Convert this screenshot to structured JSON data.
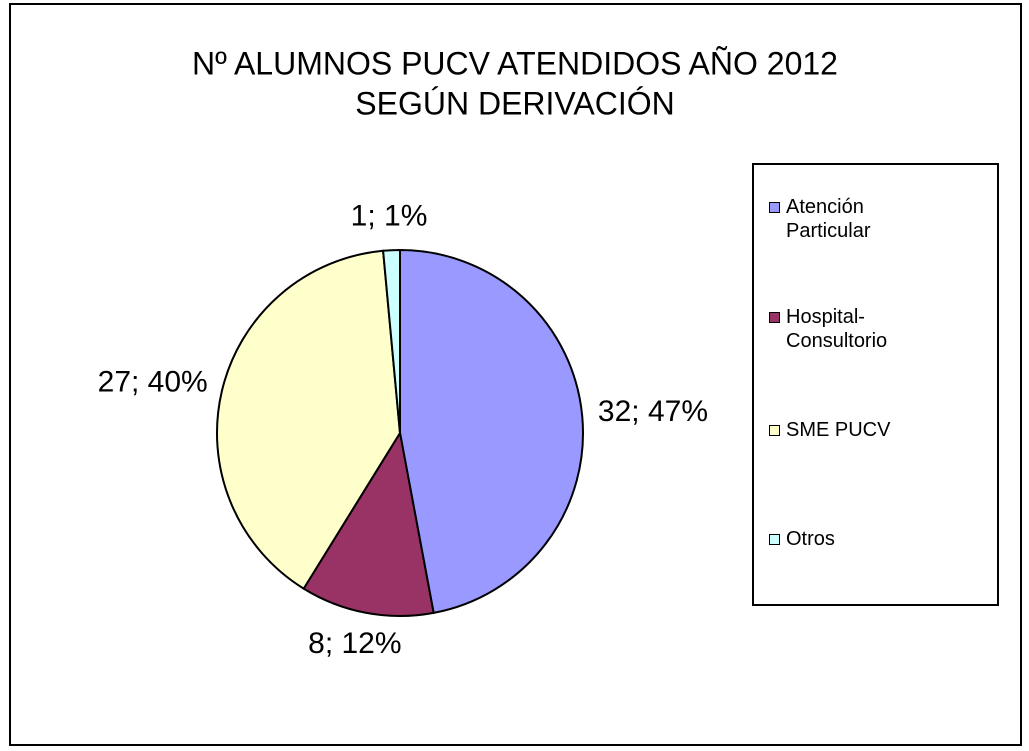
{
  "chart_data": {
    "type": "pie",
    "title": [
      "Nº ALUMNOS PUCV ATENDIDOS AÑO 2012",
      "SEGÚN DERIVACIÓN"
    ],
    "categories": [
      "Atención Particular",
      "Hospital-Consultorio",
      "SME PUCV",
      "Otros"
    ],
    "values": [
      32,
      8,
      27,
      1
    ],
    "value_labels": [
      "32; 47%",
      "8; 12%",
      "27; 40%",
      "1; 1%"
    ],
    "colors": [
      "#9999ff",
      "#993366",
      "#ffffcc",
      "#ccffff"
    ],
    "legend": "right"
  }
}
